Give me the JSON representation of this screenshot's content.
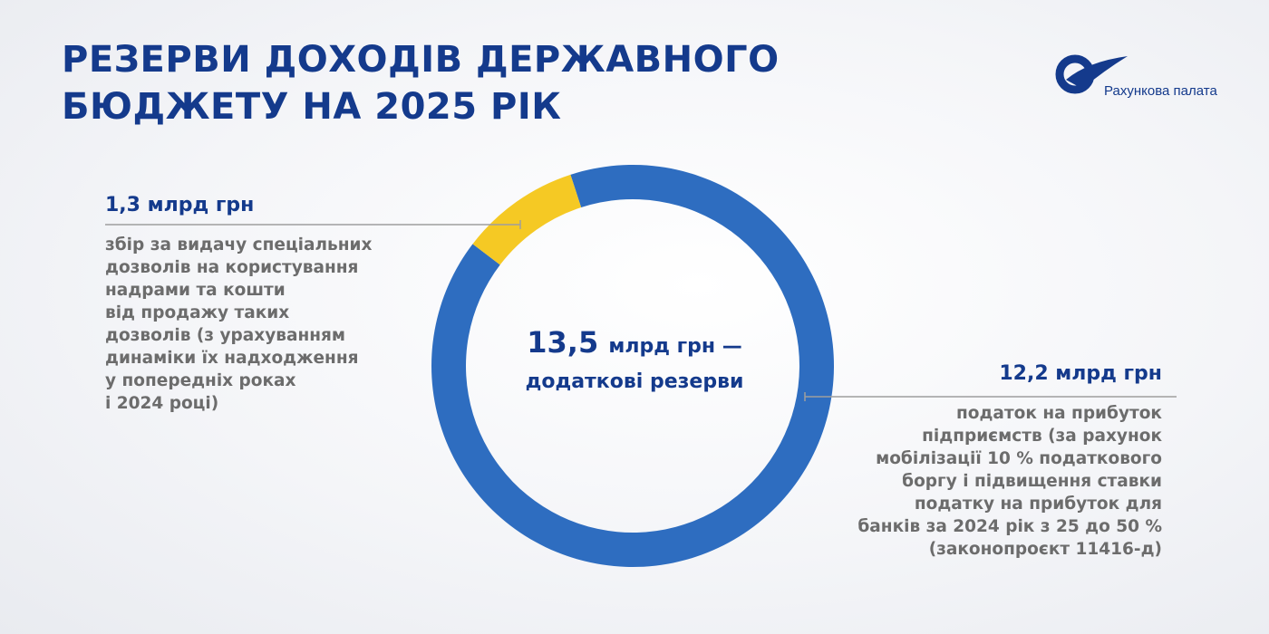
{
  "header": {
    "title_lines": [
      "РЕЗЕРВИ ДОХОДІВ ДЕРЖАВНОГО",
      "БЮДЖЕТУ НА 2025 РІК"
    ],
    "logo_text": "Рахункова палата"
  },
  "colors": {
    "blue": "#2e6dc0",
    "yellow": "#f5c924",
    "navy": "#143a8c",
    "grey_text": "#6c6c6c",
    "leader_line": "#9e9e9e"
  },
  "chart_data": {
    "type": "pie",
    "variant": "donut",
    "total": {
      "value": "13,5",
      "unit": "млрд грн —",
      "label": "додаткові резерви"
    },
    "slices": [
      {
        "value": 12.2,
        "value_label": "12,2 млрд грн",
        "color": "#2e6dc0",
        "description": [
          "податок на прибуток",
          "підприємств (за рахунок",
          "мобілізації 10 % податкового",
          "боргу і підвищення ставки",
          "податку на прибуток для",
          "банків за 2024 рік з 25 до 50 %",
          "(законопроєкт 11416-д)"
        ]
      },
      {
        "value": 1.3,
        "value_label": "1,3 млрд грн",
        "color": "#f5c924",
        "description": [
          "збір за видачу спеціальних",
          "дозволів на користування",
          "надрами та кошти",
          "від продажу таких",
          "дозволів (з урахуванням",
          "динаміки їх надходження",
          "у попередніх роках",
          "і 2024 році)"
        ]
      }
    ]
  }
}
